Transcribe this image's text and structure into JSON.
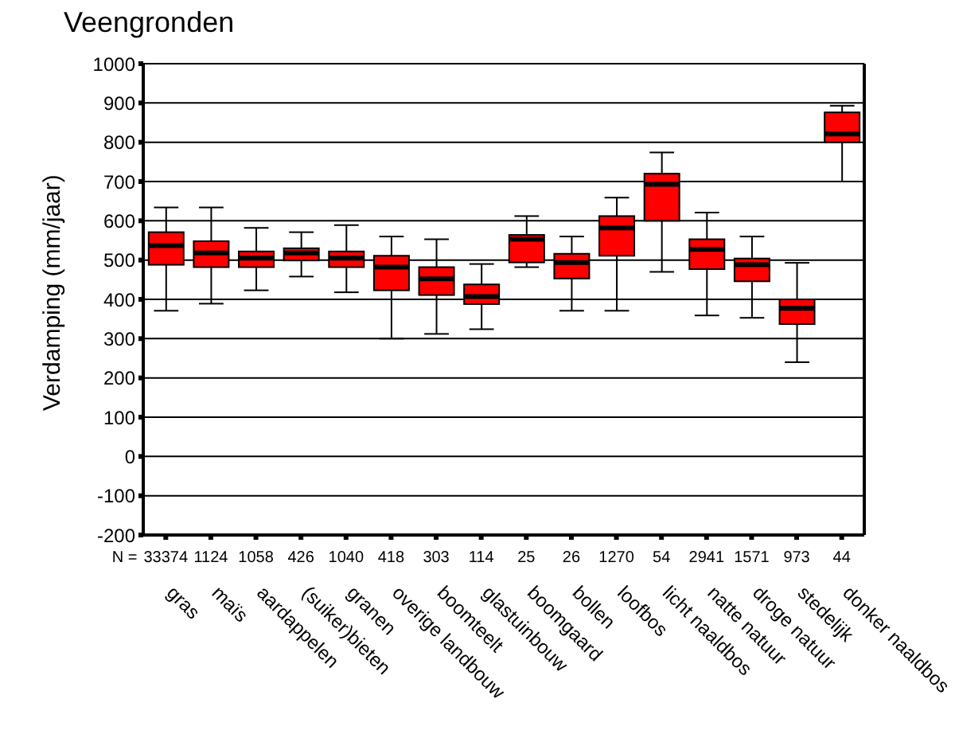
{
  "chart_data": {
    "type": "box",
    "title": "Veengronden",
    "ylabel": "Verdamping (mm/jaar)",
    "categories": [
      "gras",
      "maïs",
      "aardappelen",
      "(suiker)bieten",
      "granen",
      "overige landbouw",
      "boomteelt",
      "glastuinbouw",
      "boomgaard",
      "bollen",
      "loofbos",
      "licht naaldbos",
      "natte natuur",
      "droge natuur",
      "stedelijk",
      "donker naaldbos"
    ],
    "annotations": [
      "N =",
      "33374",
      "1124",
      "1058",
      "426",
      "1040",
      "418",
      "303",
      "114",
      "25",
      "26",
      "1270",
      "54",
      "2941",
      "1571",
      "973",
      "44"
    ],
    "ylim": [
      -200,
      1000
    ],
    "yticks": [
      -200,
      -100,
      0,
      100,
      200,
      300,
      400,
      500,
      600,
      700,
      800,
      900,
      1000
    ],
    "grid": "y",
    "series": [
      {
        "color": "#ff0000",
        "boxes": [
          {
            "low": 371,
            "q1": 488,
            "median": 537,
            "q3": 571,
            "high": 634
          },
          {
            "low": 389,
            "q1": 482,
            "median": 518,
            "q3": 548,
            "high": 634
          },
          {
            "low": 423,
            "q1": 482,
            "median": 505,
            "q3": 522,
            "high": 582
          },
          {
            "low": 458,
            "q1": 499,
            "median": 518,
            "q3": 530,
            "high": 571
          },
          {
            "low": 418,
            "q1": 482,
            "median": 505,
            "q3": 522,
            "high": 589
          },
          {
            "low": 300,
            "q1": 423,
            "median": 482,
            "q3": 511,
            "high": 560
          },
          {
            "low": 312,
            "q1": 411,
            "median": 452,
            "q3": 482,
            "high": 553
          },
          {
            "low": 324,
            "q1": 388,
            "median": 407,
            "q3": 438,
            "high": 490
          },
          {
            "low": 482,
            "q1": 494,
            "median": 553,
            "q3": 564,
            "high": 612
          },
          {
            "low": 371,
            "q1": 453,
            "median": 494,
            "q3": 516,
            "high": 560
          },
          {
            "low": 371,
            "q1": 511,
            "median": 582,
            "q3": 612,
            "high": 659
          },
          {
            "low": 470,
            "q1": 600,
            "median": 693,
            "q3": 720,
            "high": 774
          },
          {
            "low": 359,
            "q1": 477,
            "median": 527,
            "q3": 553,
            "high": 621
          },
          {
            "low": 353,
            "q1": 446,
            "median": 488,
            "q3": 504,
            "high": 560
          },
          {
            "low": 240,
            "q1": 337,
            "median": 377,
            "q3": 400,
            "high": 493
          },
          {
            "low": 700,
            "q1": 800,
            "median": 821,
            "q3": 876,
            "high": 893
          }
        ]
      }
    ]
  }
}
